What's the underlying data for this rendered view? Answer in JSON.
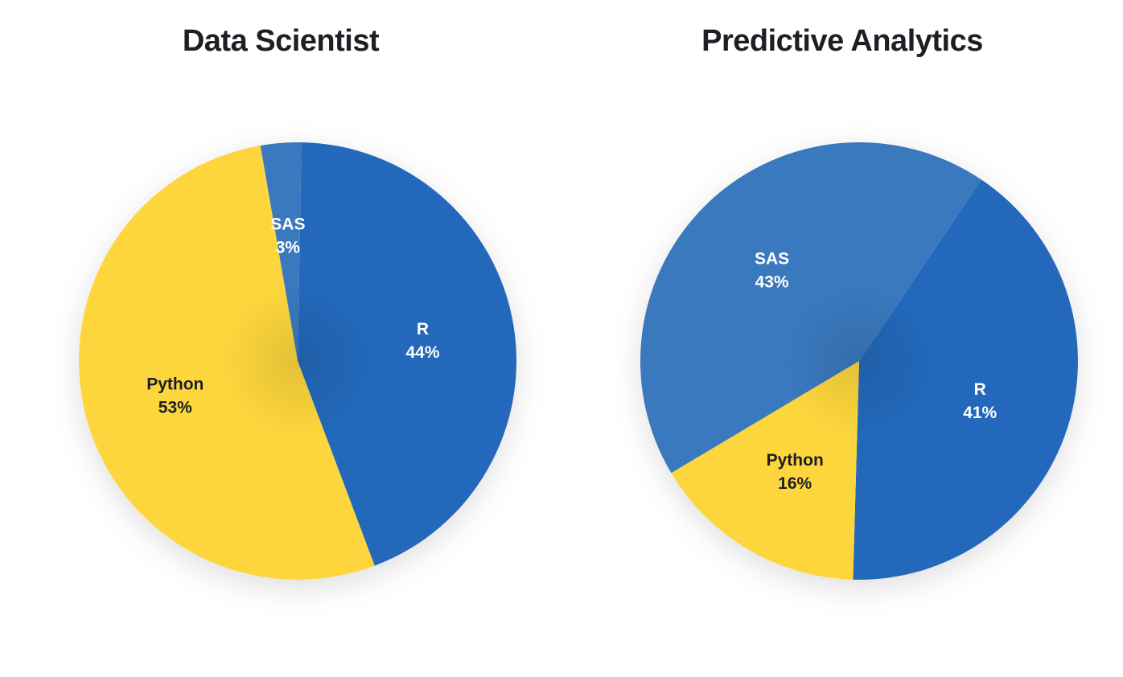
{
  "chart_data": [
    {
      "type": "pie",
      "title": "Data Scientist",
      "start_angle_deg": 1,
      "slices": [
        {
          "label": "R",
          "value": 44,
          "value_label": "44%",
          "color": "#2368BA",
          "text_color": "#FFFFFF"
        },
        {
          "label": "Python",
          "value": 53,
          "value_label": "53%",
          "color": "#FCD63C",
          "text_color": "#1D1F24"
        },
        {
          "label": "SAS",
          "value": 3,
          "value_label": "3%",
          "color": "#3A79BE",
          "text_color": "#FFFFFF"
        }
      ]
    },
    {
      "type": "pie",
      "title": "Predictive Analytics",
      "start_angle_deg": 34,
      "slices": [
        {
          "label": "R",
          "value": 41,
          "value_label": "41%",
          "color": "#2368BA",
          "text_color": "#FFFFFF"
        },
        {
          "label": "Python",
          "value": 16,
          "value_label": "16%",
          "color": "#FCD63C",
          "text_color": "#1D1F24"
        },
        {
          "label": "SAS",
          "value": 43,
          "value_label": "43%",
          "color": "#3A79BE",
          "text_color": "#FFFFFF"
        }
      ]
    }
  ]
}
